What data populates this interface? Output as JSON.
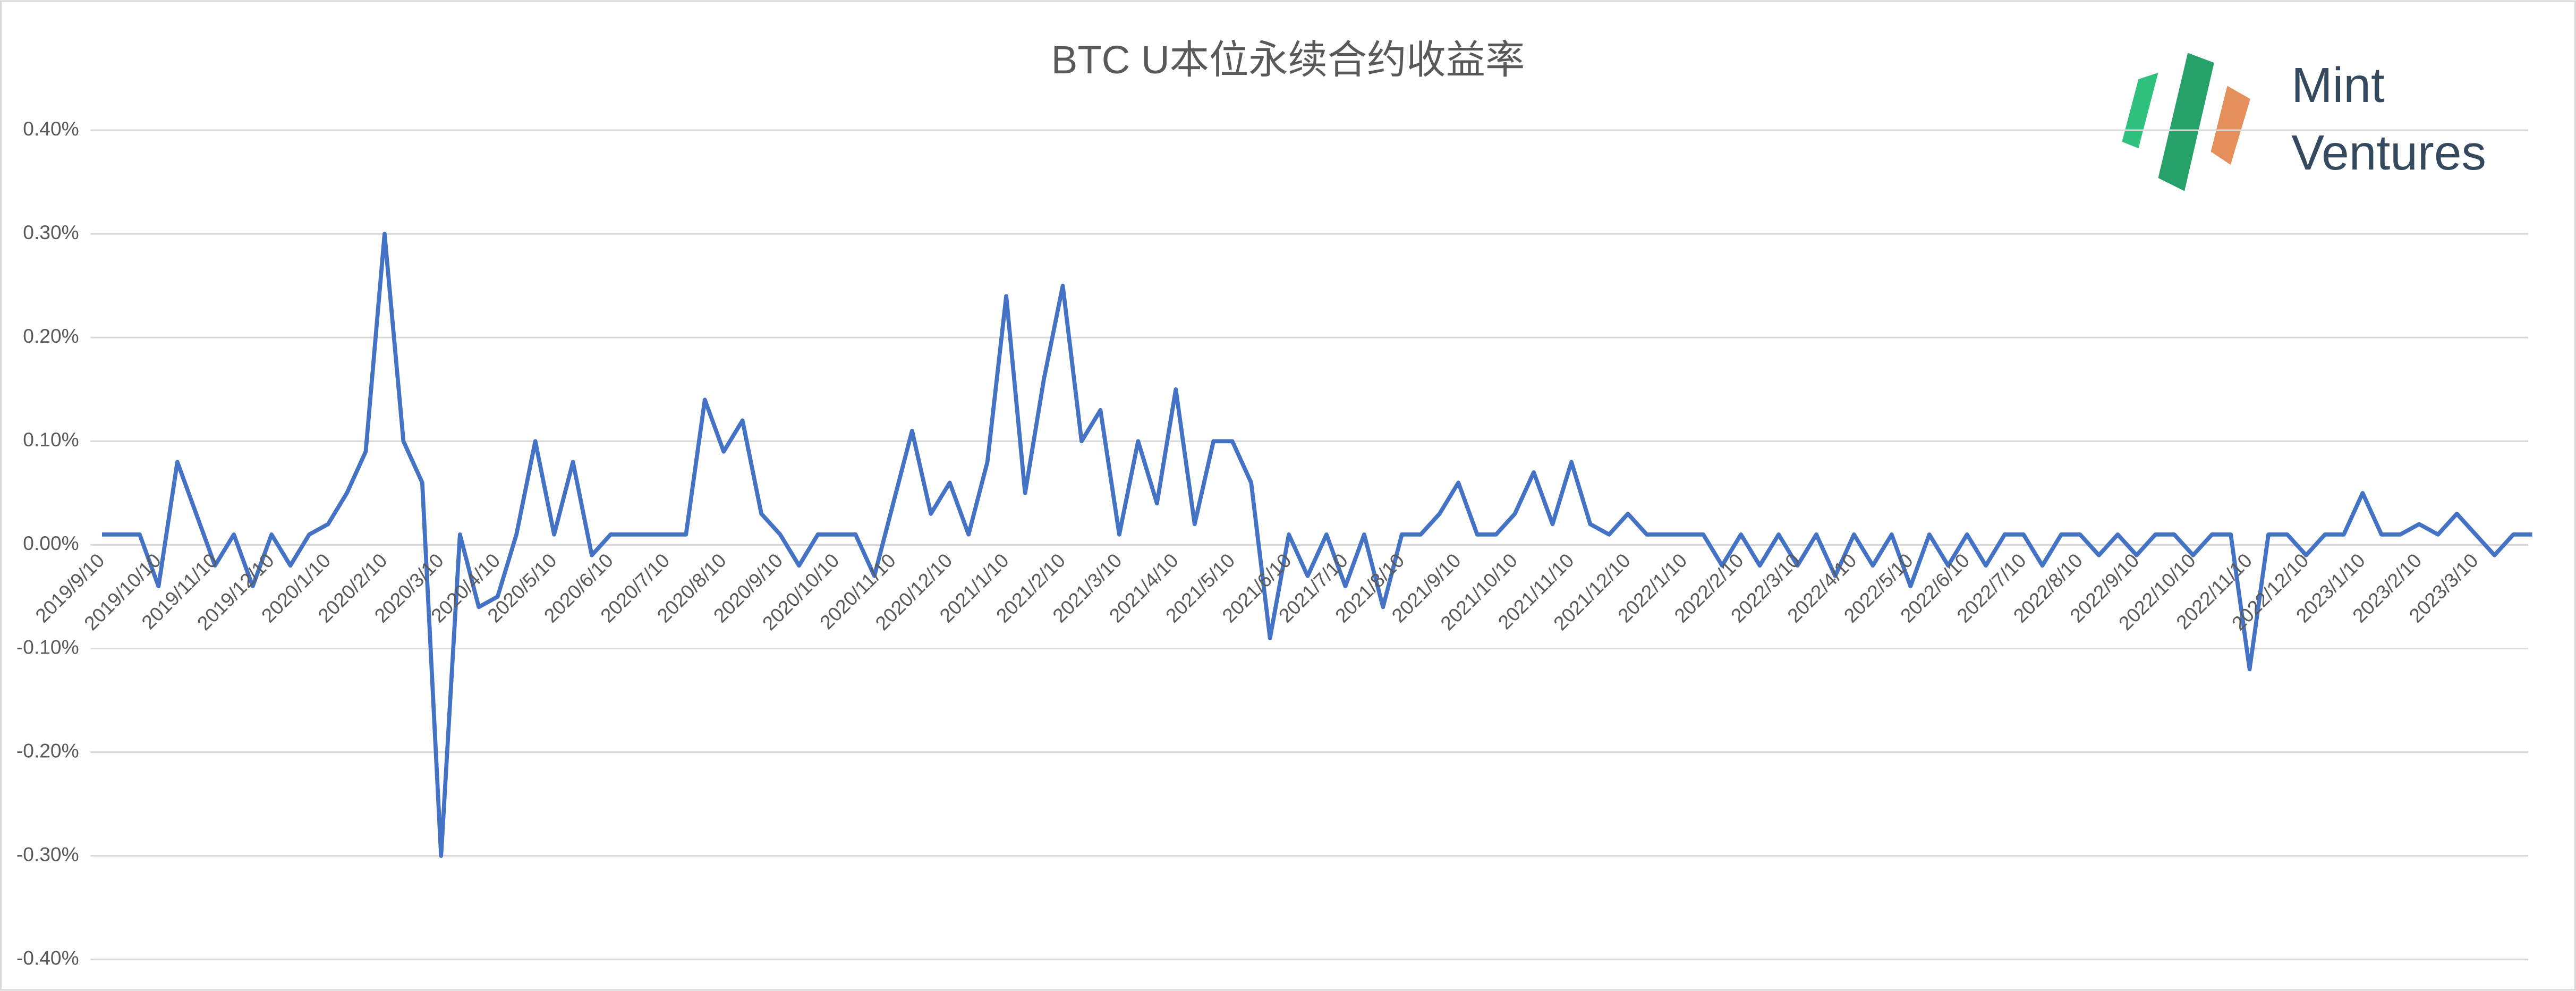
{
  "chart_data": {
    "type": "line",
    "title": "BTC U本位永续合约收益率",
    "logo": {
      "line1": "Mint",
      "line2": "Ventures"
    },
    "color": "#4472c4",
    "grid": true,
    "categories": [
      "2019/9/10",
      null,
      null,
      "2019/10/10",
      null,
      null,
      "2019/11/10",
      null,
      null,
      "2019/12/10",
      null,
      null,
      "2020/1/10",
      null,
      null,
      "2020/2/10",
      null,
      null,
      "2020/3/10",
      null,
      null,
      "2020/4/10",
      null,
      null,
      "2020/5/10",
      null,
      null,
      "2020/6/10",
      null,
      null,
      "2020/7/10",
      null,
      null,
      "2020/8/10",
      null,
      null,
      "2020/9/10",
      null,
      null,
      "2020/10/10",
      null,
      null,
      "2020/11/10",
      null,
      null,
      "2020/12/10",
      null,
      null,
      "2021/1/10",
      null,
      null,
      "2021/2/10",
      null,
      null,
      "2021/3/10",
      null,
      null,
      "2021/4/10",
      null,
      null,
      "2021/5/10",
      null,
      null,
      "2021/6/10",
      null,
      null,
      "2021/7/10",
      null,
      null,
      "2021/8/10",
      null,
      null,
      "2021/9/10",
      null,
      null,
      "2021/10/10",
      null,
      null,
      "2021/11/10",
      null,
      null,
      "2021/12/10",
      null,
      null,
      "2022/1/10",
      null,
      null,
      "2022/2/10",
      null,
      null,
      "2022/3/10",
      null,
      null,
      "2022/4/10",
      null,
      null,
      "2022/5/10",
      null,
      null,
      "2022/6/10",
      null,
      null,
      "2022/7/10",
      null,
      null,
      "2022/8/10",
      null,
      null,
      "2022/9/10",
      null,
      null,
      "2022/10/10",
      null,
      null,
      "2022/11/10",
      null,
      null,
      "2022/12/10",
      null,
      null,
      "2023/1/10",
      null,
      null,
      "2023/2/10",
      null,
      null,
      "2023/3/10",
      null,
      null,
      null
    ],
    "values": [
      0.01,
      0.01,
      0.01,
      -0.04,
      0.08,
      0.03,
      -0.02,
      0.01,
      -0.04,
      0.01,
      -0.02,
      0.01,
      0.02,
      0.05,
      0.09,
      0.3,
      0.1,
      0.06,
      -0.3,
      0.01,
      -0.06,
      -0.05,
      0.01,
      0.1,
      0.01,
      0.08,
      -0.01,
      0.01,
      0.01,
      0.01,
      0.01,
      0.01,
      0.14,
      0.09,
      0.12,
      0.03,
      0.01,
      -0.02,
      0.01,
      0.01,
      0.01,
      -0.03,
      0.04,
      0.11,
      0.03,
      0.06,
      0.01,
      0.08,
      0.24,
      0.05,
      0.16,
      0.25,
      0.1,
      0.13,
      0.01,
      0.1,
      0.04,
      0.15,
      0.02,
      0.1,
      0.1,
      0.06,
      -0.09,
      0.01,
      -0.03,
      0.01,
      -0.04,
      0.01,
      -0.06,
      0.01,
      0.01,
      0.03,
      0.06,
      0.01,
      0.01,
      0.03,
      0.07,
      0.02,
      0.08,
      0.02,
      0.01,
      0.03,
      0.01,
      0.01,
      0.01,
      0.01,
      -0.02,
      0.01,
      -0.02,
      0.01,
      -0.02,
      0.01,
      -0.03,
      0.01,
      -0.02,
      0.01,
      -0.04,
      0.01,
      -0.02,
      0.01,
      -0.02,
      0.01,
      0.01,
      -0.02,
      0.01,
      0.01,
      -0.01,
      0.01,
      -0.01,
      0.01,
      0.01,
      -0.01,
      0.01,
      0.01,
      -0.12,
      0.01,
      0.01,
      -0.01,
      0.01,
      0.01,
      0.05,
      0.01,
      0.01,
      0.02,
      0.01,
      0.03,
      0.01,
      -0.01,
      0.01,
      0.01
    ],
    "ylim": [
      -0.4,
      0.4
    ],
    "yticks": [
      {
        "value": -0.4,
        "label": "-0.40%"
      },
      {
        "value": -0.3,
        "label": "-0.30%"
      },
      {
        "value": -0.2,
        "label": "-0.20%"
      },
      {
        "value": -0.1,
        "label": "-0.10%"
      },
      {
        "value": 0,
        "label": "0.00%"
      },
      {
        "value": 0.1,
        "label": "0.10%"
      },
      {
        "value": 0.2,
        "label": "0.20%"
      },
      {
        "value": 0.3,
        "label": "0.30%"
      },
      {
        "value": 0.4,
        "label": "0.40%"
      }
    ]
  }
}
